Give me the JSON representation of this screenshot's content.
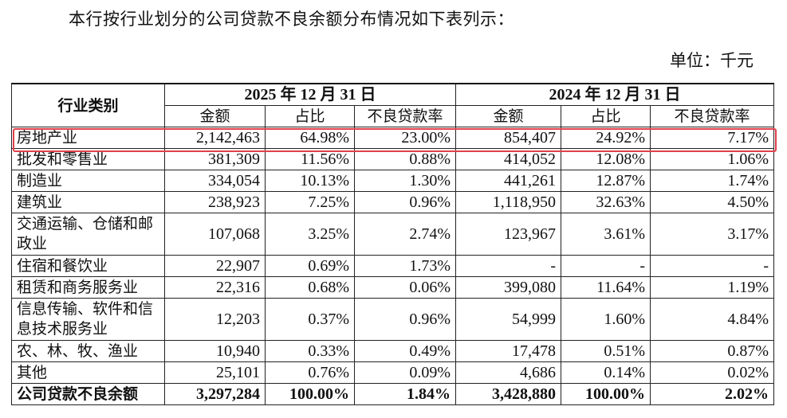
{
  "intro": "本行按行业划分的公司贷款不良余额分布情况如下表列示：",
  "unit": "单位：千元",
  "header": {
    "category": "行业类别",
    "period_2025": "2025 年 12 月 31 日",
    "period_2024": "2024 年 12 月 31 日",
    "amount": "金额",
    "share": "占比",
    "npl_ratio": "不良贷款率"
  },
  "rows": [
    {
      "category": "房地产业",
      "a25": "2,142,463",
      "s25": "64.98%",
      "r25": "23.00%",
      "a24": "854,407",
      "s24": "24.92%",
      "r24": "7.17%"
    },
    {
      "category": "批发和零售业",
      "a25": "381,309",
      "s25": "11.56%",
      "r25": "0.88%",
      "a24": "414,052",
      "s24": "12.08%",
      "r24": "1.06%"
    },
    {
      "category": "制造业",
      "a25": "334,054",
      "s25": "10.13%",
      "r25": "1.30%",
      "a24": "441,261",
      "s24": "12.87%",
      "r24": "1.74%"
    },
    {
      "category": "建筑业",
      "a25": "238,923",
      "s25": "7.25%",
      "r25": "0.96%",
      "a24": "1,118,950",
      "s24": "32.63%",
      "r24": "4.50%"
    },
    {
      "category": "交通运输、仓储和邮政业",
      "a25": "107,068",
      "s25": "3.25%",
      "r25": "2.74%",
      "a24": "123,967",
      "s24": "3.61%",
      "r24": "3.17%"
    },
    {
      "category": "住宿和餐饮业",
      "a25": "22,907",
      "s25": "0.69%",
      "r25": "1.73%",
      "a24": "-",
      "s24": "-",
      "r24": "-"
    },
    {
      "category": "租赁和商务服务业",
      "a25": "22,316",
      "s25": "0.68%",
      "r25": "0.06%",
      "a24": "399,080",
      "s24": "11.64%",
      "r24": "1.19%"
    },
    {
      "category": "信息传输、软件和信息技术服务业",
      "a25": "12,203",
      "s25": "0.37%",
      "r25": "0.96%",
      "a24": "54,999",
      "s24": "1.60%",
      "r24": "4.84%"
    },
    {
      "category": "农、林、牧、渔业",
      "a25": "10,940",
      "s25": "0.33%",
      "r25": "0.49%",
      "a24": "17,478",
      "s24": "0.51%",
      "r24": "0.87%"
    },
    {
      "category": "其他",
      "a25": "25,101",
      "s25": "0.76%",
      "r25": "0.09%",
      "a24": "4,686",
      "s24": "0.14%",
      "r24": "0.02%"
    }
  ],
  "total": {
    "category": "公司贷款不良余额",
    "a25": "3,297,284",
    "s25": "100.00%",
    "r25": "1.84%",
    "a24": "3,428,880",
    "s24": "100.00%",
    "r24": "2.02%"
  },
  "highlight_color": "#e0414b"
}
